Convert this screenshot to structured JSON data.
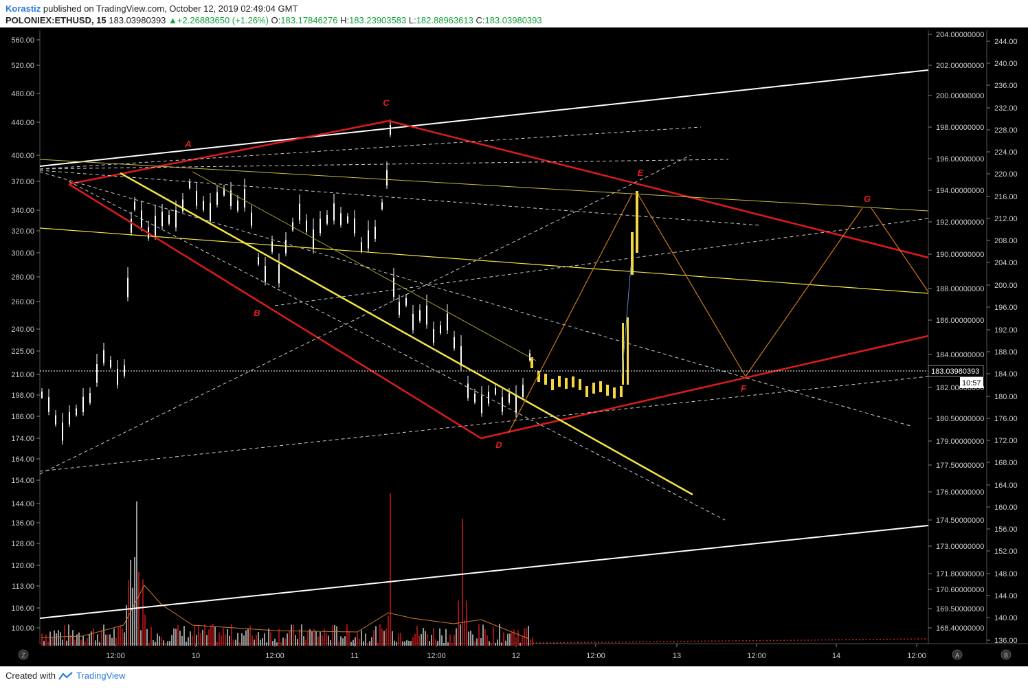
{
  "header": {
    "author": "Korastiz",
    "published": "published on TradingView.com, October 12, 2019 02:49:04 GMT",
    "symbol": "POLONIEX:ETHUSD, 15",
    "price": "183.03980393",
    "change": "+2.26883650 (+1.26%)",
    "o_label": "O:",
    "o_value": "183.17846276",
    "h_label": "H:",
    "h_value": "183.23903583",
    "l_label": "L:",
    "l_value": "182.88963613",
    "c_label": "C:",
    "c_value": "183.03980393"
  },
  "footer": {
    "created": "Created with",
    "brand": "TradingView"
  },
  "colors": {
    "background": "#000000",
    "bull": "#ffffff",
    "bear": "#ffffff",
    "projection": "#f5d742",
    "channel_red": "#e01b1b",
    "channel_yellow": "#f5e642",
    "white_line": "#ffffff",
    "projection_orange": "#d07a1a"
  },
  "chart_data": {
    "type": "candlestick",
    "timeframe": "15",
    "left_axis_ticks": [
      "560.00",
      "520.00",
      "480.00",
      "440.00",
      "400.00",
      "370.00",
      "340.00",
      "320.00",
      "300.00",
      "280.00",
      "260.00",
      "240.00",
      "225.00",
      "210.00",
      "198.00",
      "186.00",
      "174.00",
      "164.00",
      "154.00",
      "144.00",
      "136.00",
      "128.00",
      "120.00",
      "113.00",
      "106.00",
      "100.00"
    ],
    "right_axis_a_ticks": [
      "204.00000000",
      "202.00000000",
      "200.00000000",
      "198.00000000",
      "196.00000000",
      "194.00000000",
      "192.00000000",
      "190.00000000",
      "188.00000000",
      "186.00000000",
      "184.00000000",
      "182.00000000",
      "180.50000000",
      "179.00000000",
      "177.50000000",
      "176.00000000",
      "174.50000000",
      "173.00000000",
      "171.80000000",
      "170.60000000",
      "169.50000000",
      "168.40000000"
    ],
    "right_axis_b_ticks": [
      "244.00",
      "240.00",
      "236.00",
      "232.00",
      "228.00",
      "224.00",
      "220.00",
      "216.00",
      "212.00",
      "208.00",
      "204.00",
      "200.00",
      "196.00",
      "192.00",
      "188.00",
      "184.00",
      "180.00",
      "176.00",
      "172.00",
      "168.00",
      "164.00",
      "160.00",
      "156.00",
      "152.00",
      "148.00",
      "144.00",
      "140.00",
      "136.00"
    ],
    "x_ticks": [
      "12:00",
      "10",
      "12:00",
      "11",
      "12:00",
      "12",
      "12:00",
      "13",
      "12:00",
      "14",
      "12:00"
    ],
    "current_price_label": "183.03980393",
    "countdown_label": "10:57",
    "pattern_labels": [
      "A",
      "B",
      "C",
      "D",
      "E",
      "F",
      "G"
    ],
    "axis_buttons": [
      "Z",
      "A",
      "B"
    ]
  }
}
